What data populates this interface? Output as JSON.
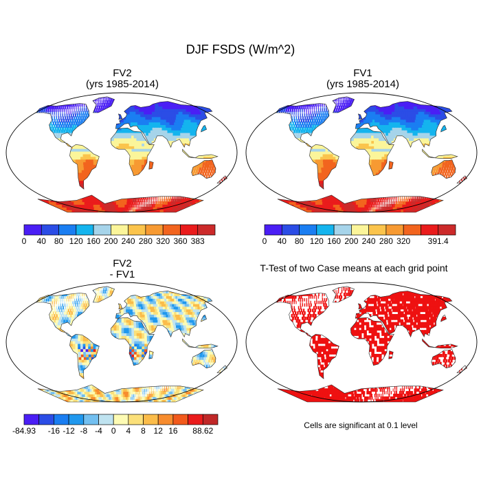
{
  "figure": {
    "title": "DJF FSDS (W/m^2)",
    "note": "Cells are significant at 0.1 level"
  },
  "chart_data": [
    {
      "type": "map",
      "id": "fv2",
      "title": "FV2",
      "subtitle": "(yrs 1985-2014)",
      "colorbar": {
        "levels": [
          "0",
          "40",
          "80",
          "120",
          "160",
          "200",
          "240",
          "280",
          "320",
          "360",
          "383"
        ],
        "colors": [
          "#4a1ef5",
          "#2b4de6",
          "#1a7ef2",
          "#14b4ee",
          "#a6d4ea",
          "#fbf59a",
          "#fbc44c",
          "#f79a32",
          "#f2641e",
          "#ea1c1c",
          "#cc2a2a"
        ]
      }
    },
    {
      "type": "map",
      "id": "fv1",
      "title": "FV1",
      "subtitle": "(yrs 1985-2014)",
      "colorbar": {
        "levels": [
          "0",
          "40",
          "80",
          "120",
          "160",
          "200",
          "240",
          "280",
          "320",
          "",
          "391.4"
        ],
        "colors": [
          "#4a1ef5",
          "#2b4de6",
          "#1a7ef2",
          "#14b4ee",
          "#a6d4ea",
          "#fbf59a",
          "#fbc44c",
          "#f79a32",
          "#f2641e",
          "#ea1c1c",
          "#cc2a2a"
        ]
      }
    },
    {
      "type": "map",
      "id": "diff",
      "title": "FV2",
      "subtitle": "- FV1",
      "colorbar": {
        "levels": [
          "-84.93",
          "",
          "-16",
          "-12",
          "-8",
          "-4",
          "0",
          "4",
          "8",
          "12",
          "16",
          "",
          "88.62"
        ],
        "colors": [
          "#4a1ef5",
          "#2b4de6",
          "#1a7ef2",
          "#2098ee",
          "#72bff0",
          "#bfe3f0",
          "#fdfbb4",
          "#fbe07a",
          "#fbbc4a",
          "#f78c2e",
          "#f25a1c",
          "#ea1c1c",
          "#c02828"
        ]
      }
    },
    {
      "type": "map",
      "id": "ttest",
      "title": "T-Test of two Case means at each grid point",
      "fill": "#ee1111"
    }
  ]
}
